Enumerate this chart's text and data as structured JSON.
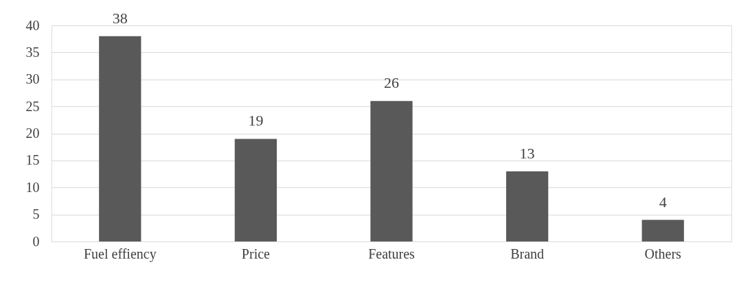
{
  "chart_data": {
    "type": "bar",
    "categories": [
      "Fuel effiency",
      "Price",
      "Features",
      "Brand",
      "Others"
    ],
    "values": [
      38,
      19,
      26,
      13,
      4
    ],
    "color": "#595959",
    "ylim": [
      0,
      40
    ],
    "yticks": [
      0,
      5,
      10,
      15,
      20,
      25,
      30,
      35,
      40
    ],
    "grid": "y",
    "data_labels": true
  }
}
